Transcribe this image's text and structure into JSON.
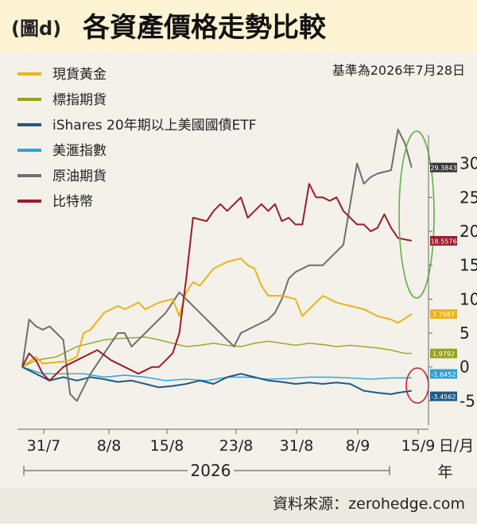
{
  "header": {
    "figure_tag": "(圖d)",
    "title": "各資產價格走勢比較"
  },
  "baseline_note": "基準為2026年7月28日",
  "source_note": "資料來源：zerohedge.com",
  "colors": {
    "header_bg": "#fef3d3",
    "plot_bg": "#f4f1ea",
    "footer_bg": "#ece9e0",
    "highlight_circle": "#5fb04a",
    "bitcoin_circle": "#c42030"
  },
  "chart_data": {
    "type": "line",
    "x_axis": {
      "tick_labels": [
        "31/7",
        "8/8",
        "15/8",
        "23/8",
        "31/8",
        "8/9",
        "15/9"
      ],
      "unit_label_top": "日/月",
      "unit_label_bottom": "年",
      "year_label": "2026",
      "xlim": [
        0,
        59
      ]
    },
    "y_axis": {
      "ticks": [
        -5,
        0,
        5,
        10,
        15,
        20,
        25,
        30
      ],
      "tick_labels": [
        "-5",
        "0",
        "5",
        "10",
        "15",
        "20",
        "25",
        "30"
      ],
      "ylim": [
        -8,
        33
      ],
      "position": "right"
    },
    "grid": false,
    "legend_position": "top-left",
    "series": [
      {
        "name": "現貨黃金",
        "color": "#e8b418",
        "end_label": "7.7987",
        "points": [
          [
            0,
            0
          ],
          [
            2,
            1.5
          ],
          [
            3,
            0.5
          ],
          [
            6,
            0.8
          ],
          [
            7,
            1
          ],
          [
            8,
            1.5
          ],
          [
            9,
            5
          ],
          [
            10,
            5.5
          ],
          [
            12,
            8
          ],
          [
            13,
            8.5
          ],
          [
            14,
            9
          ],
          [
            15,
            8.5
          ],
          [
            16,
            9
          ],
          [
            17,
            9.5
          ],
          [
            18,
            8.5
          ],
          [
            20,
            9.5
          ],
          [
            22,
            10
          ],
          [
            23,
            7.5
          ],
          [
            24,
            11
          ],
          [
            25,
            12.5
          ],
          [
            26,
            12
          ],
          [
            28,
            14.5
          ],
          [
            30,
            15.5
          ],
          [
            32,
            16
          ],
          [
            33,
            15
          ],
          [
            34,
            14.5
          ],
          [
            35,
            12
          ],
          [
            36,
            10.5
          ],
          [
            38,
            10.5
          ],
          [
            40,
            10
          ],
          [
            41,
            7.5
          ],
          [
            42,
            8.5
          ],
          [
            44,
            10.5
          ],
          [
            46,
            9.5
          ],
          [
            48,
            9
          ],
          [
            50,
            8.5
          ],
          [
            52,
            7.5
          ],
          [
            54,
            7
          ],
          [
            55,
            6.5
          ],
          [
            57,
            7.8
          ]
        ]
      },
      {
        "name": "標指期貨",
        "color": "#9aa11f",
        "end_label": "1.9792",
        "points": [
          [
            0,
            0
          ],
          [
            2,
            1
          ],
          [
            5,
            1.5
          ],
          [
            8,
            3
          ],
          [
            10,
            3.5
          ],
          [
            12,
            4
          ],
          [
            14,
            4.2
          ],
          [
            16,
            4.3
          ],
          [
            18,
            4.4
          ],
          [
            20,
            4
          ],
          [
            22,
            3.5
          ],
          [
            24,
            3
          ],
          [
            26,
            3.2
          ],
          [
            28,
            3.5
          ],
          [
            30,
            3.2
          ],
          [
            32,
            3
          ],
          [
            34,
            3.5
          ],
          [
            36,
            3.8
          ],
          [
            38,
            3.5
          ],
          [
            40,
            3.2
          ],
          [
            42,
            3.5
          ],
          [
            44,
            3.3
          ],
          [
            46,
            3
          ],
          [
            48,
            3.2
          ],
          [
            50,
            3
          ],
          [
            52,
            2.8
          ],
          [
            54,
            2.5
          ],
          [
            56,
            2
          ],
          [
            57,
            2
          ]
        ]
      },
      {
        "name": "iShares 20年期以上美國國債ETF",
        "color": "#1e5a85",
        "end_label": "-3.4562",
        "points": [
          [
            0,
            0
          ],
          [
            2,
            -1
          ],
          [
            4,
            -2
          ],
          [
            6,
            -1.5
          ],
          [
            8,
            -2
          ],
          [
            10,
            -1.5
          ],
          [
            12,
            -1.8
          ],
          [
            14,
            -2.2
          ],
          [
            16,
            -2
          ],
          [
            18,
            -2.5
          ],
          [
            20,
            -3
          ],
          [
            22,
            -2.8
          ],
          [
            24,
            -2.5
          ],
          [
            26,
            -2
          ],
          [
            28,
            -2.5
          ],
          [
            30,
            -1.5
          ],
          [
            32,
            -1
          ],
          [
            34,
            -1.5
          ],
          [
            36,
            -2
          ],
          [
            38,
            -2.2
          ],
          [
            40,
            -2.5
          ],
          [
            42,
            -2.3
          ],
          [
            44,
            -2.5
          ],
          [
            46,
            -2.3
          ],
          [
            48,
            -2.5
          ],
          [
            50,
            -3.5
          ],
          [
            52,
            -3.8
          ],
          [
            54,
            -4
          ],
          [
            55,
            -3.8
          ],
          [
            57,
            -3.5
          ]
        ]
      },
      {
        "name": "美滙指數",
        "color": "#2da3d4",
        "end_label": "-1.6452",
        "points": [
          [
            0,
            0
          ],
          [
            3,
            -1
          ],
          [
            6,
            -1
          ],
          [
            9,
            -1
          ],
          [
            12,
            -1.5
          ],
          [
            15,
            -1.2
          ],
          [
            18,
            -1.5
          ],
          [
            21,
            -2
          ],
          [
            24,
            -1.8
          ],
          [
            27,
            -2
          ],
          [
            30,
            -1.5
          ],
          [
            33,
            -1.5
          ],
          [
            36,
            -1.8
          ],
          [
            39,
            -1.7
          ],
          [
            42,
            -1.5
          ],
          [
            45,
            -1.5
          ],
          [
            48,
            -1.6
          ],
          [
            51,
            -1.8
          ],
          [
            54,
            -1.6
          ],
          [
            57,
            -1.6
          ]
        ]
      },
      {
        "name": "原油期貨",
        "color": "#6e6e6e",
        "end_label": "29.3843",
        "points": [
          [
            0,
            0
          ],
          [
            1,
            7
          ],
          [
            2,
            6
          ],
          [
            3,
            5.5
          ],
          [
            4,
            6
          ],
          [
            5,
            5
          ],
          [
            6,
            4
          ],
          [
            7,
            -4
          ],
          [
            8,
            -5
          ],
          [
            9,
            -3
          ],
          [
            10,
            -1
          ],
          [
            12,
            2
          ],
          [
            14,
            5
          ],
          [
            15,
            5
          ],
          [
            16,
            3
          ],
          [
            17,
            4
          ],
          [
            19,
            6
          ],
          [
            21,
            8
          ],
          [
            23,
            11
          ],
          [
            25,
            9
          ],
          [
            26,
            8
          ],
          [
            27,
            7
          ],
          [
            28,
            6
          ],
          [
            29,
            5
          ],
          [
            30,
            4
          ],
          [
            31,
            3
          ],
          [
            32,
            5
          ],
          [
            34,
            6
          ],
          [
            36,
            7
          ],
          [
            37,
            8
          ],
          [
            38,
            10
          ],
          [
            39,
            13
          ],
          [
            40,
            14
          ],
          [
            42,
            15
          ],
          [
            44,
            15
          ],
          [
            45,
            16
          ],
          [
            46,
            17
          ],
          [
            47,
            18
          ],
          [
            48,
            24
          ],
          [
            49,
            30
          ],
          [
            50,
            27
          ],
          [
            51,
            28
          ],
          [
            52,
            28.5
          ],
          [
            54,
            29
          ],
          [
            55,
            35
          ],
          [
            56,
            33
          ],
          [
            57,
            29.4
          ]
        ]
      },
      {
        "name": "比特幣",
        "color": "#9a1c2a",
        "end_label": "18.5576",
        "points": [
          [
            0,
            0
          ],
          [
            1,
            2
          ],
          [
            2,
            1
          ],
          [
            3,
            -1
          ],
          [
            4,
            -2
          ],
          [
            5,
            -1
          ],
          [
            6,
            0
          ],
          [
            8,
            1
          ],
          [
            10,
            2
          ],
          [
            11,
            2.5
          ],
          [
            13,
            1
          ],
          [
            15,
            0
          ],
          [
            17,
            -1
          ],
          [
            19,
            0
          ],
          [
            20,
            0
          ],
          [
            21,
            1
          ],
          [
            22,
            2
          ],
          [
            23,
            5
          ],
          [
            24,
            13
          ],
          [
            25,
            22
          ],
          [
            27,
            21.5
          ],
          [
            28,
            23
          ],
          [
            29,
            24
          ],
          [
            30,
            23
          ],
          [
            31,
            24
          ],
          [
            32,
            25
          ],
          [
            33,
            22
          ],
          [
            34,
            23
          ],
          [
            35,
            24
          ],
          [
            36,
            23
          ],
          [
            37,
            24
          ],
          [
            38,
            21.5
          ],
          [
            39,
            22
          ],
          [
            40,
            21
          ],
          [
            41,
            21
          ],
          [
            42,
            27
          ],
          [
            43,
            25
          ],
          [
            44,
            25
          ],
          [
            45,
            24.5
          ],
          [
            46,
            25
          ],
          [
            47,
            23
          ],
          [
            48,
            22
          ],
          [
            49,
            21
          ],
          [
            50,
            21
          ],
          [
            51,
            20
          ],
          [
            52,
            20.5
          ],
          [
            53,
            22.5
          ],
          [
            54,
            20.5
          ],
          [
            55,
            19
          ],
          [
            57,
            18.6
          ]
        ]
      }
    ]
  }
}
